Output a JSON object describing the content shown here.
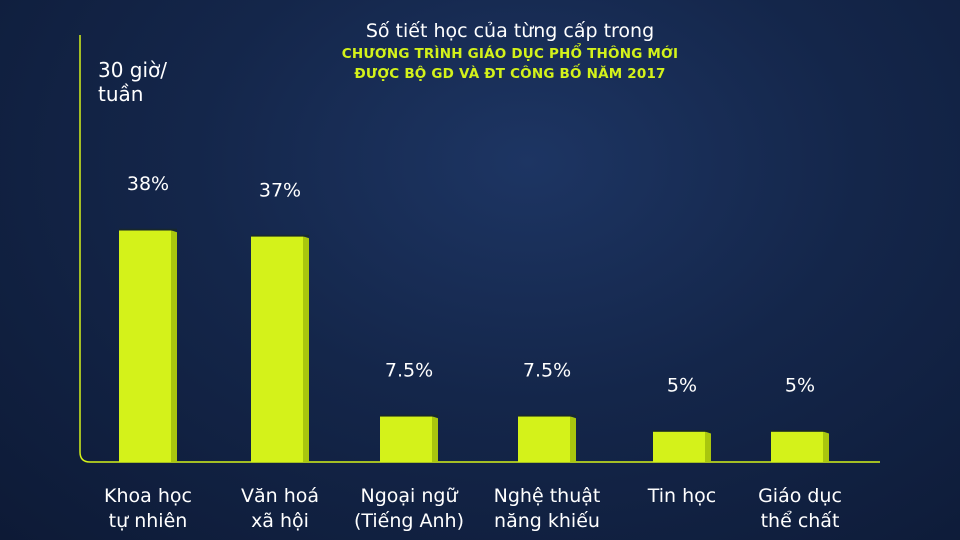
{
  "title": {
    "line1": "Số tiết học của từng cấp trong",
    "line2": "CHƯƠNG TRÌNH GIÁO DỤC PHỔ THÔNG MỚI",
    "line3": "ĐƯỢC BỘ GD VÀ ĐT CÔNG BỐ NĂM 2017"
  },
  "unit_label": [
    "30 giờ/",
    "tuần"
  ],
  "colors": {
    "bar": "#d4f21a",
    "bar_side": "#a9c60e",
    "axis": "#d4f21a",
    "text": "#ffffff"
  },
  "chart_data": {
    "type": "bar",
    "categories": [
      [
        "Khoa học",
        "tự nhiên"
      ],
      [
        "Văn hoá",
        "xã hội"
      ],
      [
        "Ngoại ngữ",
        "(Tiếng Anh)"
      ],
      [
        "Nghệ thuật",
        "năng khiếu"
      ],
      [
        "Tin học"
      ],
      [
        "Giáo dục",
        "thể chất"
      ]
    ],
    "values": [
      38,
      37,
      7.5,
      7.5,
      5,
      5
    ],
    "data_labels": [
      "38%",
      "37%",
      "7.5%",
      "7.5%",
      "5%",
      "5%"
    ],
    "ylabel": "30 giờ/ tuần",
    "grid": false,
    "legend": "none"
  }
}
